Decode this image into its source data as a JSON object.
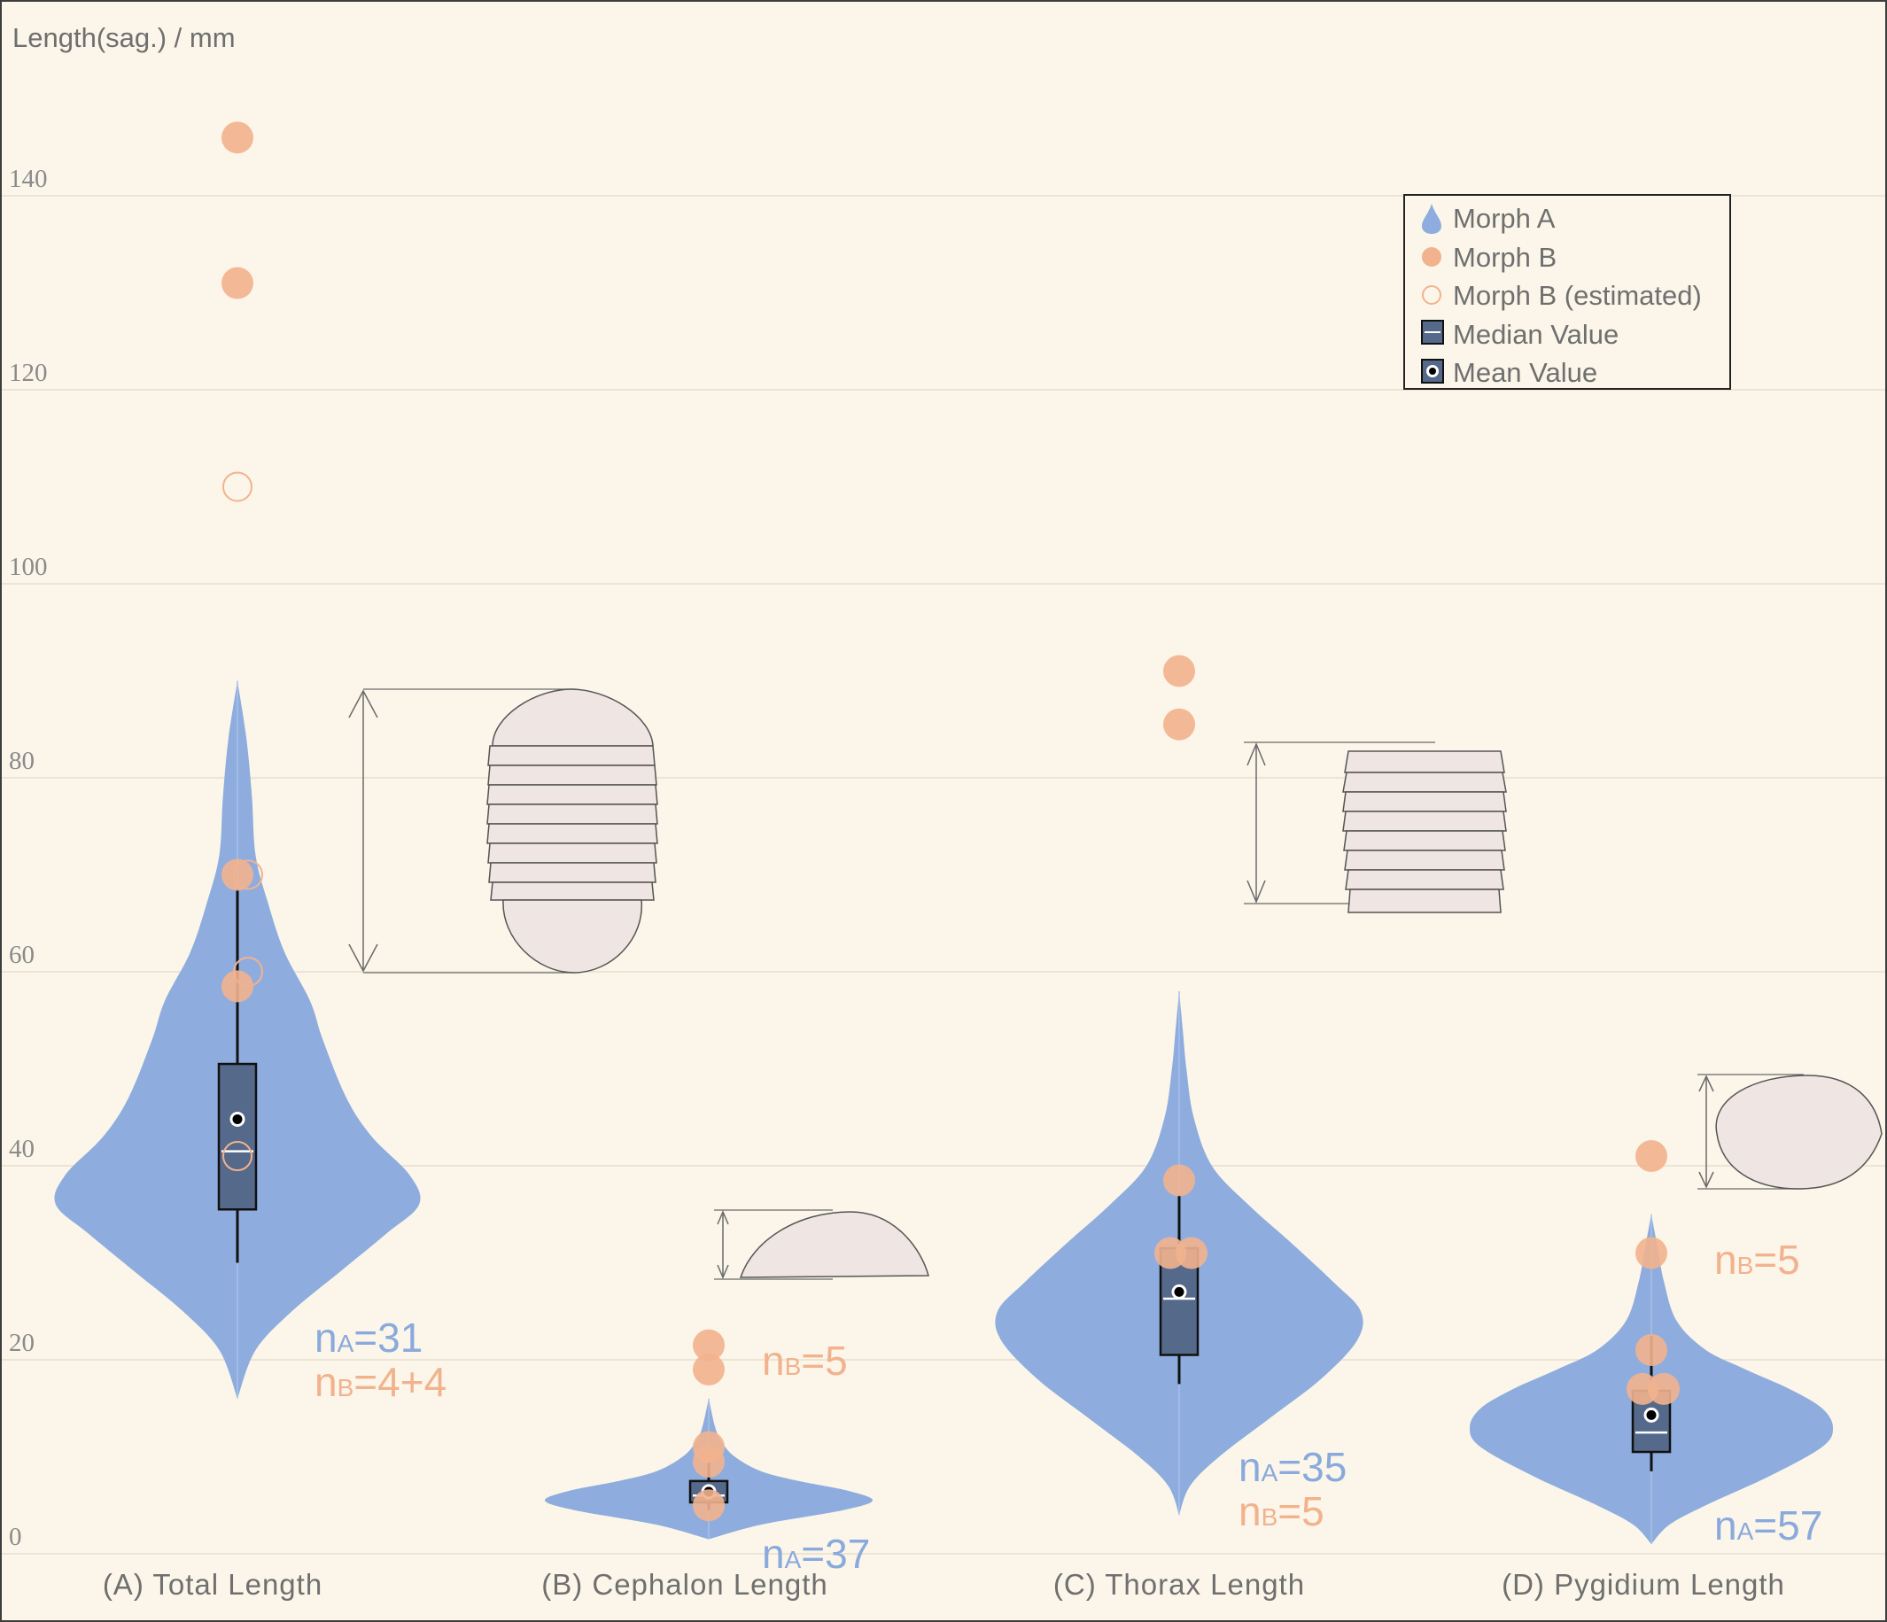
{
  "chart_data": {
    "type": "violin",
    "ylabel": "Length(sag.) / mm",
    "ylim": [
      0,
      160
    ],
    "yticks": [
      "0",
      "20",
      "40",
      "60",
      "80",
      "100",
      "120",
      "140"
    ],
    "grid": true,
    "legend": {
      "placement": "top-right",
      "items": [
        {
          "label": "Morph A",
          "marker": "violin"
        },
        {
          "label": "Morph B",
          "marker": "filled-circle"
        },
        {
          "label": "Morph B (estimated)",
          "marker": "open-circle"
        },
        {
          "label": "Median Value",
          "marker": "box-line"
        },
        {
          "label": "Mean Value",
          "marker": "box-dot"
        }
      ]
    },
    "colors": {
      "morph_a": "#8eadde",
      "morph_b": "#f2b28e",
      "box": "#55698a",
      "grid": "#ece5d4"
    },
    "groups": [
      {
        "category": "(A) Total Length",
        "violin": {
          "min": 16,
          "max": 90,
          "profile": [
            [
              16,
              0
            ],
            [
              21,
              0.1
            ],
            [
              25,
              0.3
            ],
            [
              29,
              0.56
            ],
            [
              33,
              0.82
            ],
            [
              36,
              1.0
            ],
            [
              39,
              0.95
            ],
            [
              43,
              0.74
            ],
            [
              47,
              0.6
            ],
            [
              53,
              0.47
            ],
            [
              57,
              0.4
            ],
            [
              62,
              0.26
            ],
            [
              67,
              0.17
            ],
            [
              72,
              0.1
            ],
            [
              78,
              0.08
            ],
            [
              84,
              0.05
            ],
            [
              90,
              0
            ]
          ]
        },
        "box": {
          "whisker_low": 30,
          "q1": 35.5,
          "median": 41.5,
          "q3": 50.5,
          "whisker_high": 68.5,
          "mean": 44.8
        },
        "morph_b": [
          146,
          131,
          70,
          58.5
        ],
        "morph_b_estimated": [
          110,
          70,
          60,
          41
        ],
        "n_label": {
          "nA_prefix": "n",
          "nA_sub": "A",
          "nA_value": "=31",
          "nB_prefix": "n",
          "nB_sub": "B",
          "nB_value": "=4+4"
        }
      },
      {
        "category": "(B) Cephalon Length",
        "violin": {
          "min": 1.5,
          "max": 16,
          "profile": [
            [
              1.5,
              0
            ],
            [
              3,
              0.32
            ],
            [
              4.5,
              0.82
            ],
            [
              5.5,
              1.0
            ],
            [
              6.5,
              0.85
            ],
            [
              7.5,
              0.55
            ],
            [
              8.5,
              0.32
            ],
            [
              10,
              0.16
            ],
            [
              11.5,
              0.08
            ],
            [
              13,
              0.04
            ],
            [
              16,
              0
            ]
          ]
        },
        "box": {
          "whisker_low": 4.5,
          "q1": 5.3,
          "median": 6.0,
          "q3": 7.5,
          "whisker_high": 9.5,
          "mean": 6.4
        },
        "morph_b": [
          21.5,
          19,
          11,
          9.5,
          5
        ],
        "morph_b_estimated": [],
        "n_label": {
          "nA_prefix": "n",
          "nA_sub": "A",
          "nA_value": "=37",
          "nB_prefix": "n",
          "nB_sub": "B",
          "nB_value": "=5"
        }
      },
      {
        "category": "(C) Thorax Length",
        "violin": {
          "min": 4,
          "max": 58,
          "profile": [
            [
              4,
              0
            ],
            [
              7,
              0.06
            ],
            [
              10,
              0.22
            ],
            [
              14,
              0.5
            ],
            [
              18,
              0.78
            ],
            [
              22,
              0.98
            ],
            [
              25,
              1.0
            ],
            [
              28,
              0.85
            ],
            [
              32,
              0.62
            ],
            [
              36,
              0.38
            ],
            [
              40,
              0.18
            ],
            [
              45,
              0.08
            ],
            [
              50,
              0.04
            ],
            [
              54,
              0.02
            ],
            [
              58,
              0
            ]
          ]
        },
        "box": {
          "whisker_low": 17.5,
          "q1": 20.5,
          "median": 26.3,
          "q3": 31.5,
          "whisker_high": 37,
          "mean": 27
        },
        "morph_b": [
          91,
          85.5,
          38.5,
          31,
          31
        ],
        "morph_b_estimated": [],
        "n_label": {
          "nA_prefix": "n",
          "nA_sub": "A",
          "nA_value": "=35",
          "nB_prefix": "n",
          "nB_sub": "B",
          "nB_value": "=5"
        }
      },
      {
        "category": "(D) Pygidium Length",
        "violin": {
          "min": 1,
          "max": 35,
          "profile": [
            [
              1,
              0
            ],
            [
              3,
              0.1
            ],
            [
              5,
              0.3
            ],
            [
              8,
              0.65
            ],
            [
              11,
              0.94
            ],
            [
              13,
              1.0
            ],
            [
              15,
              0.94
            ],
            [
              17,
              0.76
            ],
            [
              19,
              0.52
            ],
            [
              21,
              0.3
            ],
            [
              24,
              0.14
            ],
            [
              28,
              0.07
            ],
            [
              32,
              0.03
            ],
            [
              35,
              0
            ]
          ]
        },
        "box": {
          "whisker_low": 8.5,
          "q1": 10.5,
          "median": 12.5,
          "q3": 16.8,
          "whisker_high": 22.5,
          "mean": 14.3
        },
        "morph_b": [
          41,
          31,
          21,
          17,
          17
        ],
        "morph_b_estimated": [],
        "n_label": {
          "nA_prefix": "n",
          "nA_sub": "A",
          "nA_value": "=57",
          "nB_prefix": "n",
          "nB_sub": "B",
          "nB_value": "=5"
        }
      }
    ]
  }
}
